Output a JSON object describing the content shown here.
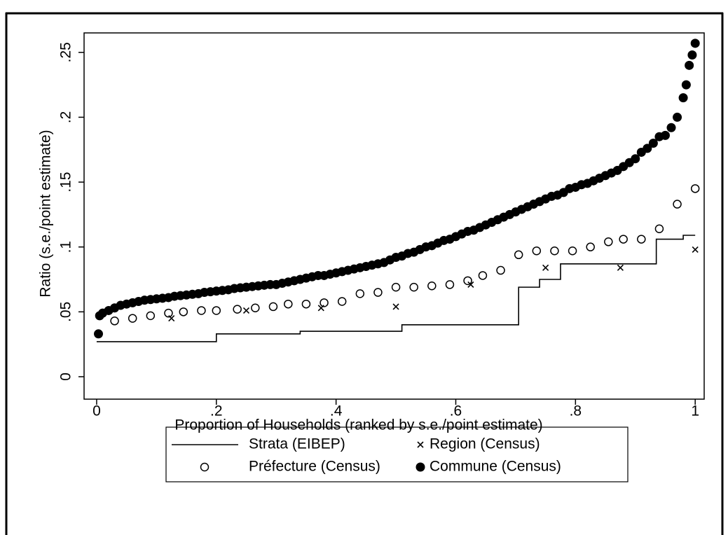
{
  "chart_data": {
    "type": "scatter",
    "x_label": "Proportion of Households (ranked by s.e./point estimate)",
    "y_label": "Ratio (s.e./point estimate)",
    "xlim": [
      -0.021,
      1.015
    ],
    "ylim": [
      -0.0173,
      0.265
    ],
    "xticks": [
      0,
      {
        "value": 0.2,
        "label": ".2"
      },
      {
        "value": 0.4,
        "label": ".4"
      },
      {
        "value": 0.6,
        "label": ".6"
      },
      {
        "value": 0.8,
        "label": ".8"
      },
      1
    ],
    "yticks": [
      0,
      {
        "value": 0.05,
        "label": ".05"
      },
      {
        "value": 0.1,
        "label": ".1"
      },
      {
        "value": 0.15,
        "label": ".15"
      },
      {
        "value": 0.2,
        "label": ".2"
      },
      {
        "value": 0.25,
        "label": ".25"
      }
    ],
    "grid": false,
    "legend_position": "bottom",
    "series": [
      {
        "name": "Strata (EIBEP)",
        "marker": "step",
        "color": "#000000",
        "x": [
          0,
          0.2,
          0.34,
          0.51,
          0.705,
          0.74,
          0.775,
          0.935,
          0.98,
          1.0
        ],
        "values": [
          0.027,
          0.033,
          0.035,
          0.04,
          0.069,
          0.075,
          0.087,
          0.106,
          0.109,
          0.109
        ]
      },
      {
        "name": "Region (Census)",
        "marker": "x",
        "color": "#000000",
        "x": [
          0.125,
          0.25,
          0.375,
          0.5,
          0.625,
          0.75,
          0.875,
          1.0
        ],
        "values": [
          0.045,
          0.051,
          0.053,
          0.054,
          0.071,
          0.084,
          0.084,
          0.098
        ]
      },
      {
        "name": "Préfecture (Census)",
        "marker": "hollow",
        "color": "#000000",
        "x": [
          0.03,
          0.06,
          0.09,
          0.12,
          0.145,
          0.175,
          0.2,
          0.235,
          0.265,
          0.295,
          0.32,
          0.35,
          0.38,
          0.41,
          0.44,
          0.47,
          0.5,
          0.53,
          0.56,
          0.59,
          0.62,
          0.645,
          0.675,
          0.705,
          0.735,
          0.765,
          0.795,
          0.825,
          0.855,
          0.88,
          0.91,
          0.94,
          0.97,
          1.0
        ],
        "values": [
          0.043,
          0.045,
          0.047,
          0.049,
          0.05,
          0.051,
          0.051,
          0.052,
          0.053,
          0.054,
          0.056,
          0.056,
          0.057,
          0.058,
          0.064,
          0.065,
          0.069,
          0.069,
          0.07,
          0.071,
          0.074,
          0.078,
          0.082,
          0.094,
          0.097,
          0.097,
          0.097,
          0.1,
          0.104,
          0.106,
          0.106,
          0.114,
          0.133,
          0.145
        ]
      },
      {
        "name": "Commune (Census)",
        "marker": "filled",
        "color": "#000000",
        "x": [
          0.003,
          0.005,
          0.01,
          0.02,
          0.03,
          0.04,
          0.05,
          0.06,
          0.07,
          0.08,
          0.09,
          0.1,
          0.11,
          0.12,
          0.13,
          0.14,
          0.15,
          0.16,
          0.17,
          0.18,
          0.19,
          0.2,
          0.21,
          0.22,
          0.23,
          0.24,
          0.25,
          0.26,
          0.27,
          0.28,
          0.29,
          0.3,
          0.31,
          0.32,
          0.33,
          0.34,
          0.35,
          0.36,
          0.37,
          0.38,
          0.39,
          0.4,
          0.41,
          0.42,
          0.43,
          0.44,
          0.45,
          0.46,
          0.47,
          0.48,
          0.49,
          0.5,
          0.51,
          0.52,
          0.53,
          0.54,
          0.55,
          0.56,
          0.57,
          0.58,
          0.59,
          0.6,
          0.61,
          0.62,
          0.63,
          0.64,
          0.65,
          0.66,
          0.67,
          0.68,
          0.69,
          0.7,
          0.71,
          0.72,
          0.73,
          0.74,
          0.75,
          0.76,
          0.77,
          0.78,
          0.79,
          0.8,
          0.81,
          0.82,
          0.83,
          0.84,
          0.85,
          0.86,
          0.87,
          0.88,
          0.89,
          0.9,
          0.91,
          0.92,
          0.93,
          0.94,
          0.95,
          0.96,
          0.97,
          0.98,
          0.985,
          0.99,
          0.995,
          1.0
        ],
        "values": [
          0.033,
          0.047,
          0.049,
          0.051,
          0.053,
          0.055,
          0.056,
          0.057,
          0.058,
          0.059,
          0.0595,
          0.06,
          0.0605,
          0.061,
          0.062,
          0.0625,
          0.063,
          0.0635,
          0.064,
          0.065,
          0.0655,
          0.066,
          0.0665,
          0.067,
          0.068,
          0.0685,
          0.069,
          0.0695,
          0.07,
          0.0705,
          0.071,
          0.071,
          0.072,
          0.073,
          0.074,
          0.075,
          0.076,
          0.077,
          0.078,
          0.078,
          0.079,
          0.08,
          0.081,
          0.082,
          0.083,
          0.084,
          0.085,
          0.086,
          0.087,
          0.088,
          0.09,
          0.092,
          0.093,
          0.095,
          0.096,
          0.098,
          0.1,
          0.101,
          0.103,
          0.105,
          0.106,
          0.108,
          0.11,
          0.112,
          0.113,
          0.115,
          0.117,
          0.119,
          0.121,
          0.123,
          0.125,
          0.127,
          0.129,
          0.131,
          0.133,
          0.135,
          0.137,
          0.139,
          0.14,
          0.142,
          0.145,
          0.146,
          0.148,
          0.149,
          0.151,
          0.153,
          0.155,
          0.157,
          0.159,
          0.162,
          0.165,
          0.168,
          0.173,
          0.176,
          0.18,
          0.185,
          0.186,
          0.192,
          0.2,
          0.215,
          0.225,
          0.24,
          0.248,
          0.257
        ]
      }
    ]
  }
}
